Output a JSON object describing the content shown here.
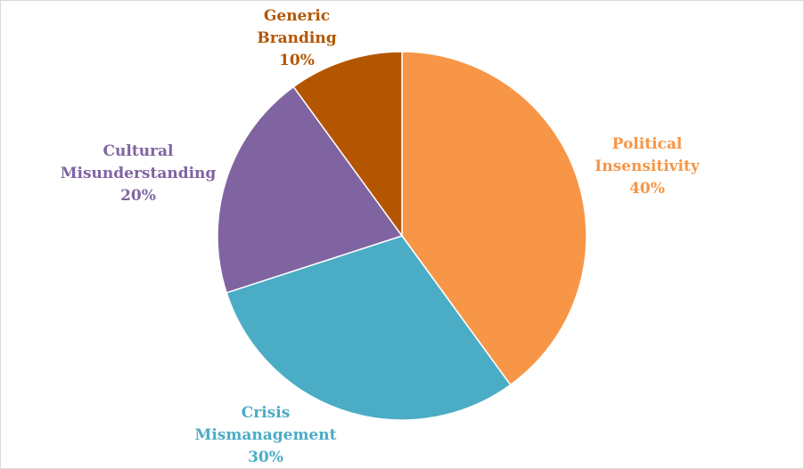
{
  "chart_data": {
    "type": "pie",
    "title": "",
    "start_angle_deg": 0,
    "direction": "clockwise",
    "slices": [
      {
        "name": "Political Insensitivity",
        "label_lines": [
          "Political",
          "Insensitivity"
        ],
        "value": 40,
        "value_label": "40%",
        "color": "#F79646"
      },
      {
        "name": "Crisis Mismanagement",
        "label_lines": [
          "Crisis",
          "Mismanagement"
        ],
        "value": 30,
        "value_label": "30%",
        "color": "#4BACC6"
      },
      {
        "name": "Cultural Misunderstanding",
        "label_lines": [
          "Cultural",
          "Misunderstanding"
        ],
        "value": 20,
        "value_label": "20%",
        "color": "#8064A2"
      },
      {
        "name": "Generic Branding",
        "label_lines": [
          "Generic",
          "Branding"
        ],
        "value": 10,
        "value_label": "10%",
        "color": "#B45502"
      }
    ],
    "label_colors": [
      "#F79646",
      "#4BACC6",
      "#8064A2",
      "#B45502"
    ]
  }
}
